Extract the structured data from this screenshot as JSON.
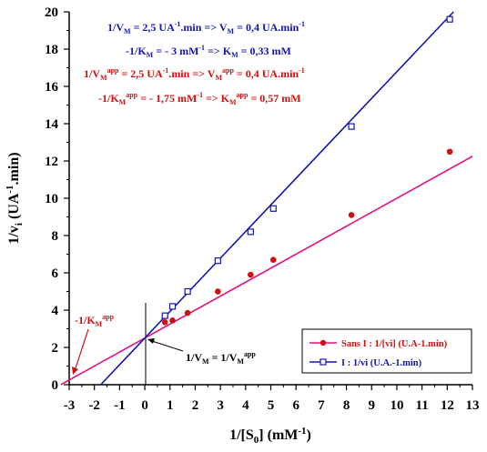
{
  "chart_data": {
    "type": "scatter",
    "title": "",
    "xlabel": "1/[S0] (mM-1)",
    "xlabel_main": "1/[S",
    "xlabel_sub": "0",
    "xlabel_tail": "] (mM",
    "xlabel_sup": "-1",
    "xlabel_end": ")",
    "ylabel": "1/vi (UA-1.min)",
    "xlim": [
      -3,
      13
    ],
    "ylim": [
      0,
      20
    ],
    "x_ticks": [
      -3,
      -2,
      -1,
      0,
      1,
      2,
      3,
      4,
      5,
      6,
      7,
      8,
      9,
      10,
      11,
      12,
      13
    ],
    "y_ticks": [
      0,
      2,
      4,
      6,
      8,
      10,
      12,
      14,
      16,
      18,
      20
    ],
    "grid": false,
    "legend_position": "bottom-right",
    "series": [
      {
        "name": "Sans I : 1/[vi] (U.A-1.min)",
        "color": "#e0117f",
        "point_color": "#d01010",
        "marker": "filled-circle",
        "x": [
          0.8,
          1.1,
          1.7,
          2.9,
          4.2,
          5.1,
          8.2,
          12.1
        ],
        "y": [
          3.35,
          3.45,
          3.85,
          5.0,
          5.9,
          6.7,
          9.1,
          12.5
        ],
        "fit": {
          "slope": 0.75,
          "intercept": 2.5,
          "x_from": -3.33,
          "x_to": 13
        }
      },
      {
        "name": "I : 1/vi (U.A.-1.min)",
        "color": "#1515b0",
        "point_color": "#1515b0",
        "marker": "open-square",
        "x": [
          0.8,
          1.1,
          1.7,
          2.9,
          4.2,
          5.1,
          8.2,
          12.1
        ],
        "y": [
          3.7,
          4.2,
          5.0,
          6.65,
          8.2,
          9.45,
          13.85,
          19.6
        ],
        "fit": {
          "slope": 1.4286,
          "intercept": 2.5,
          "x_from": -1.75,
          "x_to": 12.25
        }
      }
    ],
    "annotations": {
      "blue_line1": "1/VM = 2,5 UA-1.min => VM = 0,4 UA.min-1",
      "blue_line2": "-1/KM = -3 mM-1 => KM = 0,33 mM",
      "red_line1": "1/VMapp = 2,5 UA-1.min => VMapp = 0,4 UA.min-1",
      "red_line2": "-1/KMapp = - 1,75 mM-1 => KMapp = 0,57 mM",
      "intercept_label": "1/VM = 1/VMapp",
      "xintercept_label": "-1/KMapp"
    },
    "colors": {
      "blue_text": "#1515b0",
      "red_text": "#d01010",
      "pink_line": "#e0117f",
      "blue_line": "#1515b0"
    }
  }
}
